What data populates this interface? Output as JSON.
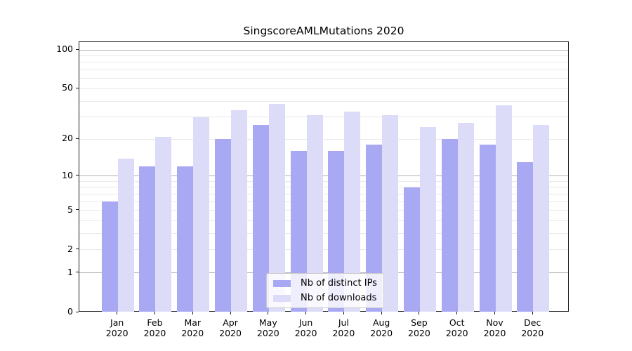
{
  "title": "SingscoreAMLMutations 2020",
  "chart_data": {
    "type": "bar",
    "title": "SingscoreAMLMutations 2020",
    "categories": [
      "Jan 2020",
      "Feb 2020",
      "Mar 2020",
      "Apr 2020",
      "May 2020",
      "Jun 2020",
      "Jul 2020",
      "Aug 2020",
      "Sep 2020",
      "Oct 2020",
      "Nov 2020",
      "Dec 2020"
    ],
    "series": [
      {
        "name": "Nb of distinct IPs",
        "color": "#a9a9f3",
        "values": [
          6,
          12,
          12,
          20,
          26,
          16,
          16,
          18,
          8,
          20,
          18,
          13
        ]
      },
      {
        "name": "Nb of downloads",
        "color": "#dcdcf8",
        "values": [
          14,
          21,
          30,
          34,
          38,
          31,
          33,
          31,
          25,
          27,
          37,
          26
        ]
      }
    ],
    "xlabel": "",
    "ylabel": "",
    "yscale": "log1p",
    "ylim": [
      0,
      115
    ],
    "yticks": [
      0,
      1,
      2,
      5,
      10,
      20,
      50,
      100
    ],
    "major_gridlines": [
      1,
      10,
      100
    ],
    "minor_gridlines": [
      2,
      3,
      4,
      5,
      6,
      7,
      8,
      9,
      20,
      30,
      40,
      50,
      60,
      70,
      80,
      90
    ],
    "grid": "horizontal only, major darker at 1/10/100, minor faint",
    "legend_position": "lower center inside plot",
    "colors": {
      "bar_distinct_ips": "#a9a9f3",
      "bar_downloads": "#dcdcf8",
      "major_grid": "#b0b0b0",
      "minor_grid": "#e9e9e9",
      "spine": "#1a1a1a",
      "text": "#000000",
      "legend_border": "#cccccc"
    }
  }
}
